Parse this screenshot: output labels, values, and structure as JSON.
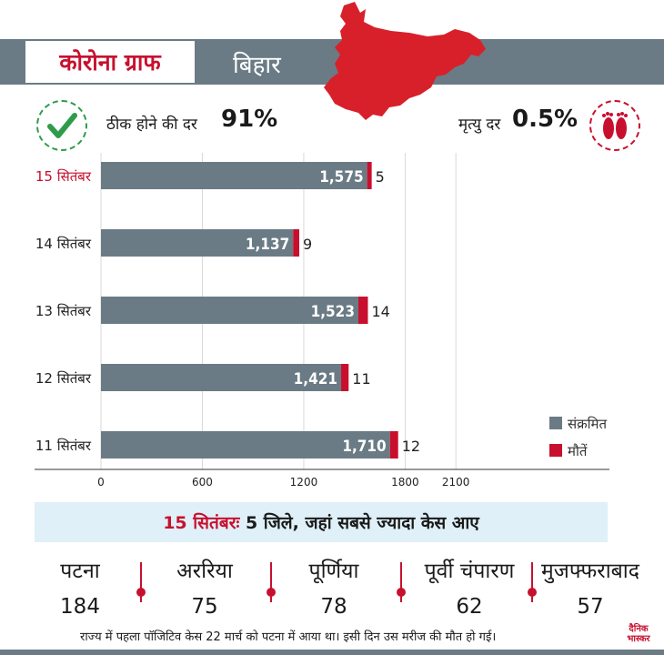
{
  "header": {
    "title": "कोरोना ग्राफ",
    "state": "बिहार"
  },
  "stats": {
    "recovery_label": "ठीक होने की दर",
    "recovery_value": "91%",
    "death_rate_label": "मृत्यु दर",
    "death_rate_value": "0.5%"
  },
  "colors": {
    "accent_red": "#c8102e",
    "bar_gray": "#6a7b85",
    "check_green": "#2e9c4a",
    "band_blue": "#dff0f8"
  },
  "icons": [
    "bihar-map-icon",
    "check-icon",
    "footprints-icon"
  ],
  "chart_data": {
    "type": "bar",
    "orientation": "horizontal",
    "stacked": true,
    "categories": [
      "15 सितंबर",
      "14 सितंबर",
      "13 सितंबर",
      "12 सितंबर",
      "11 सितंबर"
    ],
    "highlight_category": "15 सितंबर",
    "series": [
      {
        "name": "संक्रमित",
        "values": [
          1575,
          1137,
          1523,
          1421,
          1710
        ],
        "labels": [
          "1,575",
          "1,137",
          "1,523",
          "1,421",
          "1,710"
        ],
        "color": "#6a7b85"
      },
      {
        "name": "मौतें",
        "values": [
          5,
          9,
          14,
          11,
          12
        ],
        "labels": [
          "5",
          "9",
          "14",
          "11",
          "12"
        ],
        "color": "#c8102e"
      }
    ],
    "x_ticks": [
      "0",
      "600",
      "1200",
      "1800",
      "2100"
    ],
    "xlim": [
      0,
      2100
    ],
    "legend": "bottom-right",
    "grid": "vertical"
  },
  "districts": {
    "title_date": "15 सितंबरः",
    "title_rest": "5 जिले, जहां सबसे ज्यादा केस आए",
    "items": [
      {
        "name": "पटना",
        "value": "184"
      },
      {
        "name": "अररिया",
        "value": "75"
      },
      {
        "name": "पूर्णिया",
        "value": "78"
      },
      {
        "name": "पूर्वी चंपारण",
        "value": "62"
      },
      {
        "name": "मुजफ्फराबाद",
        "value": "57"
      }
    ]
  },
  "footnote": "राज्य में पहला पॉजिटिव केस 22 मार्च को पटना में आया था। इसी दिन उस मरीज की मौत हो गई।",
  "brand": "दैनिक भास्कर"
}
